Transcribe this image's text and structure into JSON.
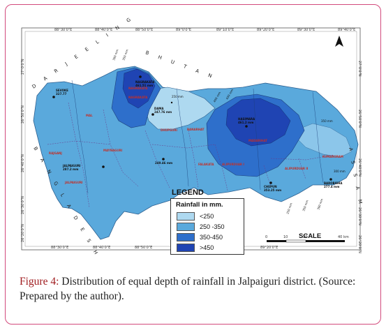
{
  "map": {
    "coords_top": [
      "88°30'0\"E",
      "88°40'0\"E",
      "88°50'0\"E",
      "89°0'0\"E",
      "89°10'0\"E",
      "89°20'0\"E",
      "89°30'0\"E",
      "89°40'0\"E"
    ],
    "coords_bottom": [
      "88°30'0\"E",
      "88°40'0\"E",
      "88°50'0\"E",
      "89°0'0\"E",
      "89°10'0\"E",
      "89°20'0\"E"
    ],
    "coords_left": [
      "27°0'0\"N",
      "26°50'0\"N",
      "26°40'0\"N",
      "26°30'0\"N",
      "26°20'0\"N"
    ],
    "coords_right": [
      "27°0'0\"N",
      "26°50'0\"N",
      "26°40'0\"N",
      "26°30'0\"N",
      "26°20'0\"N"
    ],
    "places": [
      {
        "name": "SEVOKE",
        "value": "327.77"
      },
      {
        "name": "NAGRAKATA",
        "value": "461.51 mm"
      },
      {
        "name": "BAGRAKOTE",
        "value": ""
      },
      {
        "name": "SAMSING",
        "value": ""
      },
      {
        "name": "DAMA",
        "value": "247.76 mm"
      },
      {
        "name": "HASIMARA",
        "value": "461.2 mm"
      },
      {
        "name": "JALPAIGURI",
        "value": "287.2 mm"
      },
      {
        "name": "MOYNAGURI",
        "value": "249.46 mm"
      },
      {
        "name": "CHEPUN",
        "value": "353.25 mm"
      },
      {
        "name": "BAROBISHA",
        "value": "277.4 mm"
      }
    ],
    "blocks": [
      "MAL",
      "RAJGANJ",
      "JALPAIGURI",
      "DHUPGURI",
      "MAYNAGURI",
      "BANARHAT",
      "NAGRAKATA",
      "MADARIHAT",
      "FALAKATA",
      "ALIPURDUAR I",
      "ALIPURDUAR II",
      "KUMARGRAM",
      "KALCHINI"
    ],
    "isohyets": [
      "250 mm",
      "300 mm",
      "350 mm",
      "400 mm",
      "450 mm",
      "350 mm",
      "300 mm",
      "250 mm",
      "350 mm",
      "300 mm"
    ],
    "country_left": "B A N G L A D E S H",
    "country_top": "D A R J E E L I N G",
    "country_top_right": "B H U T A N",
    "country_right": "A S S A M"
  },
  "legend": {
    "title": "LEGEND",
    "heading": "Rainfall in mm.",
    "items": [
      {
        "label": "<250",
        "color": "#aed9f0"
      },
      {
        "label": "250 -350",
        "color": "#5aa9dc"
      },
      {
        "label": "350-450",
        "color": "#2e6fcb"
      },
      {
        "label": ">450",
        "color": "#1f44b3"
      }
    ]
  },
  "scale": {
    "title": "SCALE",
    "ticks": [
      "0",
      "10",
      "20",
      "40 km"
    ]
  },
  "caption": {
    "figure_label": "Figure 4:",
    "text": " Distribution of equal depth of rainfall in Jalpaiguri district. (Source: Prepared by the author)."
  }
}
